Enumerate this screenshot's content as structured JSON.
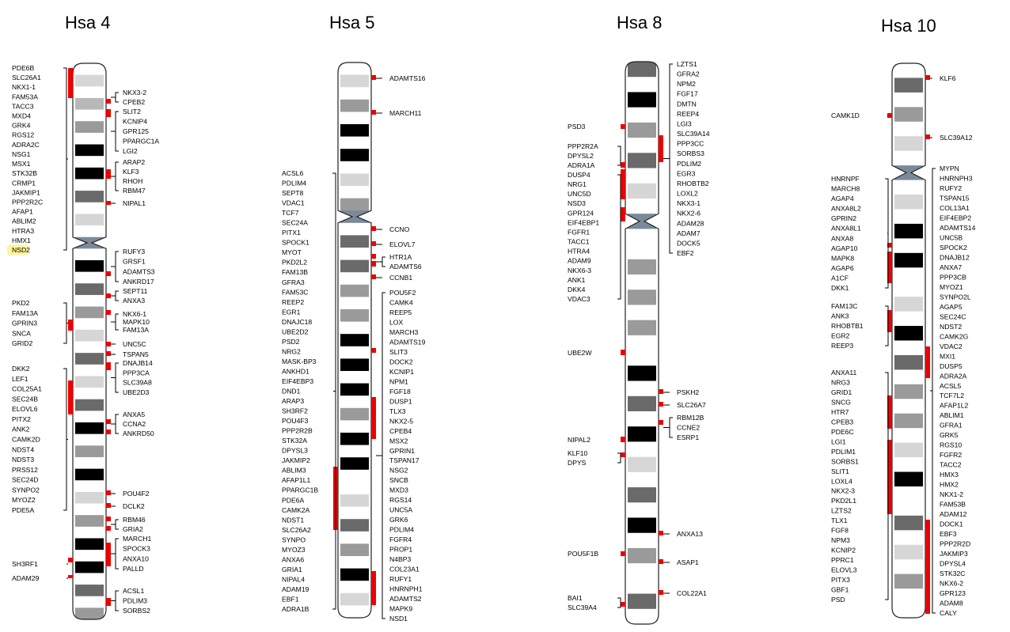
{
  "panels": [
    {
      "title": "Hsa 4",
      "highlight": "NSD2",
      "band_tones": [
        "white",
        "light",
        "white",
        "mid",
        "white",
        "gray",
        "white",
        "black",
        "white",
        "black",
        "white",
        "dark",
        "white",
        "light",
        "white",
        "cen",
        "white",
        "black",
        "white",
        "dark",
        "white",
        "gray",
        "white",
        "light",
        "white",
        "dark",
        "white",
        "light",
        "white",
        "dark",
        "white",
        "black",
        "white",
        "gray",
        "white",
        "black",
        "white",
        "light",
        "white",
        "gray",
        "white",
        "black",
        "white",
        "black",
        "white",
        "dark",
        "white",
        "gray"
      ],
      "left_genes": [
        [
          "PDE6B",
          "SLC26A1",
          "NKX1-1",
          "FAM53A",
          "TACC3",
          "MXD4",
          "GRK4",
          "RGS12",
          "ADRA2C",
          "NSG1",
          "MSX1",
          "STK32B",
          "CRMP1",
          "JAKMIP1",
          "PPP2R2C",
          "AFAP1",
          "ABLIM2",
          "HTRA3",
          "HMX1",
          "NSD2"
        ],
        [
          "PKD2",
          "FAM13A",
          "GPRIN3",
          "SNCA",
          "GRID2"
        ],
        [
          "DKK2",
          "LEF1",
          "COL25A1",
          "SEC24B",
          "ELOVL6",
          "PITX2",
          "ANK2",
          "CAMK2D",
          "NDST4",
          "NDST3",
          "PRSS12",
          "SEC24D",
          "SYNPO2",
          "MYOZ2",
          "PDE5A"
        ],
        [
          "SH3RF1"
        ],
        [
          "ADAM29"
        ]
      ],
      "right_genes": [
        [
          "NKX3-2",
          "CPEB2"
        ],
        [
          "SLIT2",
          "KCNIP4",
          "GPR125",
          "PPARGC1A",
          "LGI2"
        ],
        [
          "ARAP2",
          "KLF3",
          "RHOH",
          "RBM47"
        ],
        [
          "NIPAL1"
        ],
        [
          "RUFY3",
          "GRSF1",
          "ADAMTS3",
          "ANKRD17"
        ],
        [
          "SEPT11",
          "ANXA3"
        ],
        [
          "NKX6-1",
          "MAPK10",
          "FAM13A"
        ],
        [
          "UNC5C"
        ],
        [
          "TSPAN5"
        ],
        [
          "DNAJB14",
          "PPP3CA",
          "SLC39A8",
          "UBE2D3"
        ],
        [
          "ANXA5",
          "CCNA2",
          "ANKRD50"
        ],
        [
          "POU4F2"
        ],
        [
          "DCLK2"
        ],
        [
          "RBM46",
          "GRIA2"
        ],
        [
          "MARCH1",
          "SPOCK3",
          "ANXA10",
          "PALLD"
        ],
        [
          "ACSL1",
          "PDLIM3",
          "SORBS2"
        ]
      ]
    },
    {
      "title": "Hsa 5",
      "band_tones": [
        "white",
        "light",
        "white",
        "gray",
        "white",
        "black",
        "white",
        "black",
        "white",
        "light",
        "white",
        "gray",
        "cen",
        "white",
        "dark",
        "white",
        "dark",
        "white",
        "gray",
        "white",
        "gray",
        "white",
        "black",
        "white",
        "black",
        "white",
        "black",
        "white",
        "gray",
        "white",
        "black",
        "white",
        "black",
        "white",
        "white",
        "light",
        "white",
        "dark",
        "white",
        "gray",
        "white",
        "black",
        "white",
        "light",
        "white"
      ],
      "left_genes": [
        [
          "ACSL6",
          "PDLIM4",
          "SEPT8",
          "VDAC1",
          "TCF7",
          "SEC24A",
          "PITX1",
          "SPOCK1",
          "MYOT",
          "PKD2L2",
          "FAM13B",
          "GFRA3",
          "FAM53C",
          "REEP2",
          "EGR1",
          "DNAJC18",
          "UBE2D2",
          "PSD2",
          "NRG2",
          "MASK-BP3",
          "ANKHD1",
          "EIF4EBP3",
          "DND1",
          "ARAP3",
          "SH3RF2",
          "POU4F3",
          "PPP2R2B",
          "STK32A",
          "DPYSL3",
          "JAKMIP2",
          "ABLIM3",
          "AFAP1L1",
          "PPARGC1B",
          "PDE6A",
          "CAMK2A",
          "NDST1",
          "SLC26A2",
          "SYNPO",
          "MYOZ3",
          "ANXA6",
          "GRIA1",
          "NIPAL4",
          "ADAM19",
          "EBF1",
          "ADRA1B"
        ]
      ],
      "right_genes": [
        [
          "ADAMTS16"
        ],
        [
          "MARCH11"
        ],
        [
          "CCNO"
        ],
        [
          "ELOVL7"
        ],
        [
          "HTR1A",
          "ADAMTS6"
        ],
        [
          "CCNB1"
        ],
        [
          "POU5F2",
          "CAMK4",
          "REEP5",
          "LOX",
          "MARCH3",
          "ADAMTS19",
          "SLIT3",
          "DOCK2",
          "KCNIP1",
          "NPM1",
          "FGF18",
          "DUSP1",
          "TLX3",
          "NKX2-5",
          "CPEB4",
          "MSX2",
          "GPRIN1",
          "TSPAN17",
          "NSG2",
          "SNCB",
          "MXD3",
          "RGS14",
          "UNC5A",
          "GRK6",
          "PDLIM4",
          "FGFR4",
          "PROP1",
          "N4BP3",
          "COL23A1",
          "RUFY1",
          "HNRNPH1",
          "ADAMTS2",
          "MAPK9",
          "NSD1"
        ]
      ]
    },
    {
      "title": "Hsa 8",
      "band_tones": [
        "dark",
        "white",
        "black",
        "white",
        "gray",
        "white",
        "dark",
        "white",
        "light",
        "white",
        "cen",
        "white",
        "white",
        "gray",
        "white",
        "gray",
        "white",
        "gray",
        "white",
        "white",
        "black",
        "white",
        "dark",
        "white",
        "black",
        "white",
        "light",
        "white",
        "dark",
        "white",
        "black",
        "white",
        "gray",
        "white",
        "white",
        "dark",
        "white"
      ],
      "left_genes": [
        [
          "PSD3"
        ],
        [
          "PPP2R2A",
          "DPYSL2",
          "ADRA1A"
        ],
        [
          "DUSP4",
          "NRG1",
          "UNC5D",
          "NSD3",
          "GPR124",
          "EIF4EBP1",
          "FGFR1",
          "TACC1",
          "HTRA4",
          "ADAM9",
          "NKX6-3",
          "ANK1",
          "DKK4",
          "VDAC3"
        ],
        [
          "UBE2W"
        ],
        [
          "NIPAL2"
        ],
        [
          "KLF10",
          "DPYS"
        ],
        [
          "POU5F1B"
        ],
        [
          "BAI1",
          "SLC39A4"
        ]
      ],
      "right_genes": [
        [
          "LZTS1",
          "GFRA2",
          "NPM2",
          "FGF17",
          "DMTN",
          "REEP4",
          "LGI3",
          "SLC39A14",
          "PPP3CC",
          "SORBS3",
          "PDLIM2",
          "EGR3",
          "RHOBTB2",
          "LOXL2",
          "NKX3-1",
          "NKX2-6",
          "ADAM28",
          "ADAM7",
          "DOCK5",
          "EBF2"
        ],
        [
          "PSKH2"
        ],
        [
          "SLC26A7"
        ],
        [
          "RBM12B",
          "CCNE2",
          "ESRP1"
        ],
        [
          "ANXA13"
        ],
        [
          "ASAP1"
        ],
        [
          "COL22A1"
        ]
      ]
    },
    {
      "title": "Hsa 10",
      "band_tones": [
        "white",
        "dark",
        "white",
        "gray",
        "white",
        "light",
        "white",
        "cen",
        "white",
        "light",
        "white",
        "black",
        "white",
        "black",
        "white",
        "white",
        "light",
        "white",
        "black",
        "white",
        "dark",
        "white",
        "gray",
        "white",
        "gray",
        "white",
        "light",
        "white",
        "black",
        "white",
        "white",
        "dark",
        "white",
        "light",
        "white",
        "gray",
        "white",
        "white"
      ],
      "left_genes": [
        [
          "CAMK1D"
        ],
        [
          "HNRNPF",
          "MARCH8",
          "AGAP4",
          "ANXA8L2",
          "GPRIN2",
          "ANXA8L1",
          "ANXA8",
          "AGAP10",
          "MAPK8",
          "AGAP6",
          "A1CF",
          "DKK1"
        ],
        [
          "FAM13C",
          "ANK3",
          "RHOBTB1",
          "EGR2",
          "REEP3"
        ],
        [
          "ANXA11",
          "NRG3",
          "GRID1",
          "SNCG",
          "HTR7",
          "CPEB3",
          "PDE6C",
          "LGI1",
          "PDLIM1",
          "SORBS1",
          "SLIT1",
          "LOXL4",
          "NKX2-3",
          "PKD2L1",
          "LZTS2",
          "TLX1",
          "FGF8",
          "NPM3",
          "KCNIP2",
          "PPRC1",
          "ELOVL3",
          "PITX3",
          "GBF1",
          "PSD"
        ]
      ],
      "right_genes": [
        [
          "KLF6"
        ],
        [
          "SLC39A12"
        ],
        [
          "MYPN",
          "HNRNPH3",
          "RUFY2",
          "TSPAN15",
          "COL13A1",
          "EIF4EBP2",
          "ADAMTS14",
          "UNC5B",
          "SPOCK2",
          "DNAJB12",
          "ANXA7",
          "PPP3CB",
          "MYOZ1",
          "SYNPO2L",
          "AGAP5",
          "SEC24C",
          "NDST2",
          "CAMK2G",
          "VDAC2",
          "MXI1",
          "DUSP5",
          "ADRA2A",
          "ACSL5",
          "TCF7L2",
          "AFAP1L2",
          "ABLIM1",
          "GFRA1",
          "GRK5",
          "RGS10",
          "FGFR2",
          "TACC2",
          "HMX3",
          "HMX2",
          "NKX1-2",
          "FAM53B",
          "ADAM12",
          "DOCK1",
          "EBF3",
          "PPP2R2D",
          "JAKMIP3",
          "DPYSL4",
          "STK32C",
          "NKX6-2",
          "GPR123",
          "ADAM8",
          "CALY"
        ]
      ]
    }
  ],
  "colors": {
    "white": "#ffffff",
    "light": "#d6d6d6",
    "mid": "#b8b8b8",
    "gray": "#9a9a9a",
    "dark": "#6a6a6a",
    "black": "#000000",
    "centromere": "#7a8a99",
    "marker": "#ee0000",
    "highlight": "#fff59a"
  }
}
